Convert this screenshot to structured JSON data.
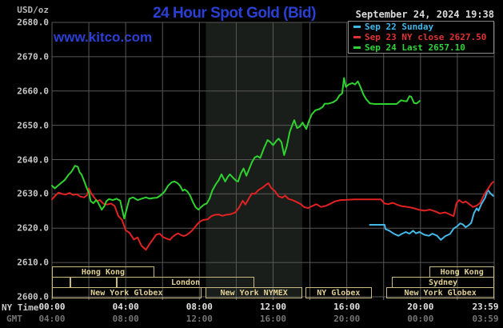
{
  "header": {
    "title": "24 Hour Spot Gold (Bid)",
    "datetime": "September 24, 2024 19:38"
  },
  "watermark": "www.kitco.com",
  "y_axis": {
    "unit_label": "USD/oz",
    "ticks": [
      "2680.0",
      "2670.0",
      "2660.0",
      "2650.0",
      "2640.0",
      "2630.0",
      "2620.0",
      "2610.0",
      "2600.0"
    ]
  },
  "x_axis": {
    "ny_row_label": "NY Time",
    "gmt_row_label": "GMT",
    "tick_hours": [
      0,
      4,
      8,
      12,
      16,
      20,
      23.983
    ],
    "ny_ticks": [
      "00:00",
      "04:00",
      "08:00",
      "12:00",
      "16:00",
      "20:00",
      "23:59"
    ],
    "gmt_ticks": [
      "04:00",
      "08:00",
      "12:00",
      "16:00",
      "20:00",
      "00:00",
      "03:59"
    ]
  },
  "legend": {
    "entries": [
      {
        "label": "Sep 22 Sunday",
        "color": "#3fb8ea"
      },
      {
        "label": "Sep 23 NY close 2627.50",
        "color": "#e03232"
      },
      {
        "label": "Sep 24 Last 2657.10",
        "color": "#2fd336"
      }
    ]
  },
  "sessions": [
    {
      "row": 0,
      "start": 0,
      "end": 5.55,
      "label": "Hong Kong"
    },
    {
      "row": 0,
      "start": 20.5,
      "end": 24,
      "label": "Hong Kong"
    },
    {
      "row": 1,
      "start": 0,
      "end": 1.0,
      "label": ""
    },
    {
      "row": 1,
      "start": 1.0,
      "end": 3.5,
      "label": ""
    },
    {
      "row": 1,
      "start": 3.5,
      "end": 11.0,
      "label": "London"
    },
    {
      "row": 1,
      "start": 18.45,
      "end": 24,
      "label": "Sydney"
    },
    {
      "row": 2,
      "start": 0,
      "end": 8.1,
      "label": "New York Globex"
    },
    {
      "row": 2,
      "start": 8.35,
      "end": 13.58,
      "label": "New York NYMEX"
    },
    {
      "row": 2,
      "start": 13.75,
      "end": 17.35,
      "label": "NY Globex"
    },
    {
      "row": 2,
      "start": 18.15,
      "end": 24,
      "label": "New York Globex"
    }
  ],
  "chart_data": {
    "type": "line",
    "title": "24 Hour Spot Gold (Bid)",
    "ylabel": "USD/oz",
    "xlabel": "NY Time (hours)",
    "xlim": [
      0,
      24
    ],
    "ylim": [
      2600,
      2680
    ],
    "grid": {
      "x_step_hours": 2,
      "y_step_usd": 10,
      "color": "#575757"
    },
    "background": "#000000",
    "highlight_band": {
      "start_hour": 8.35,
      "end_hour": 13.58,
      "color": "#1a1e1a"
    },
    "legend_position": "top-right",
    "series": [
      {
        "name": "Sep 22 Sunday",
        "color": "#45b8e8",
        "points": [
          [
            17.25,
            2621.0
          ],
          [
            18.05,
            2621.0
          ],
          [
            18.1,
            2619.7
          ],
          [
            18.3,
            2619.3
          ],
          [
            18.55,
            2618.4
          ],
          [
            18.8,
            2617.8
          ],
          [
            19.0,
            2618.4
          ],
          [
            19.2,
            2618.9
          ],
          [
            19.4,
            2618.4
          ],
          [
            19.6,
            2619.3
          ],
          [
            19.75,
            2618.5
          ],
          [
            19.95,
            2618.9
          ],
          [
            20.2,
            2618.1
          ],
          [
            20.45,
            2617.8
          ],
          [
            20.65,
            2618.4
          ],
          [
            20.9,
            2617.8
          ],
          [
            21.1,
            2616.6
          ],
          [
            21.35,
            2617.7
          ],
          [
            21.6,
            2618.3
          ],
          [
            21.8,
            2619.9
          ],
          [
            22.0,
            2620.6
          ],
          [
            22.15,
            2621.4
          ],
          [
            22.3,
            2621.1
          ],
          [
            22.45,
            2620.3
          ],
          [
            22.6,
            2620.8
          ],
          [
            22.75,
            2621.5
          ],
          [
            22.9,
            2624.4
          ],
          [
            23.05,
            2625.8
          ],
          [
            23.15,
            2625.1
          ],
          [
            23.3,
            2627.0
          ],
          [
            23.5,
            2628.8
          ],
          [
            23.65,
            2631.2
          ],
          [
            23.8,
            2630.1
          ],
          [
            23.95,
            2629.4
          ]
        ]
      },
      {
        "name": "Sep 23",
        "color": "#e02222",
        "points": [
          [
            0.0,
            2628.4
          ],
          [
            0.2,
            2629.6
          ],
          [
            0.35,
            2630.4
          ],
          [
            0.55,
            2630.0
          ],
          [
            0.75,
            2629.8
          ],
          [
            0.95,
            2630.3
          ],
          [
            1.15,
            2629.7
          ],
          [
            1.35,
            2629.9
          ],
          [
            1.55,
            2629.2
          ],
          [
            1.75,
            2629.0
          ],
          [
            1.9,
            2629.6
          ],
          [
            2.0,
            2631.6
          ],
          [
            2.15,
            2630.0
          ],
          [
            2.3,
            2628.9
          ],
          [
            2.45,
            2627.9
          ],
          [
            2.6,
            2628.2
          ],
          [
            2.8,
            2627.1
          ],
          [
            3.0,
            2626.9
          ],
          [
            3.2,
            2627.2
          ],
          [
            3.4,
            2626.5
          ],
          [
            3.6,
            2623.6
          ],
          [
            3.8,
            2622.4
          ],
          [
            4.0,
            2619.4
          ],
          [
            4.2,
            2618.7
          ],
          [
            4.45,
            2616.7
          ],
          [
            4.65,
            2617.3
          ],
          [
            4.85,
            2614.9
          ],
          [
            5.1,
            2613.7
          ],
          [
            5.3,
            2615.4
          ],
          [
            5.5,
            2616.9
          ],
          [
            5.65,
            2618.1
          ],
          [
            5.85,
            2618.4
          ],
          [
            6.0,
            2617.5
          ],
          [
            6.2,
            2617.0
          ],
          [
            6.4,
            2616.6
          ],
          [
            6.55,
            2617.5
          ],
          [
            6.7,
            2618.1
          ],
          [
            6.85,
            2618.5
          ],
          [
            7.0,
            2618.0
          ],
          [
            7.15,
            2617.7
          ],
          [
            7.3,
            2618.0
          ],
          [
            7.45,
            2618.6
          ],
          [
            7.6,
            2619.3
          ],
          [
            7.8,
            2620.6
          ],
          [
            8.0,
            2621.8
          ],
          [
            8.2,
            2622.4
          ],
          [
            8.45,
            2622.6
          ],
          [
            8.65,
            2623.5
          ],
          [
            8.85,
            2623.9
          ],
          [
            9.05,
            2624.0
          ],
          [
            9.25,
            2623.6
          ],
          [
            9.45,
            2623.9
          ],
          [
            9.7,
            2624.1
          ],
          [
            9.95,
            2624.6
          ],
          [
            10.15,
            2626.0
          ],
          [
            10.35,
            2628.0
          ],
          [
            10.5,
            2626.9
          ],
          [
            10.7,
            2628.8
          ],
          [
            10.85,
            2630.1
          ],
          [
            11.0,
            2630.0
          ],
          [
            11.2,
            2631.1
          ],
          [
            11.45,
            2631.9
          ],
          [
            11.65,
            2632.8
          ],
          [
            11.75,
            2633.1
          ],
          [
            11.9,
            2631.7
          ],
          [
            12.1,
            2630.8
          ],
          [
            12.3,
            2629.3
          ],
          [
            12.5,
            2628.9
          ],
          [
            12.65,
            2629.5
          ],
          [
            12.85,
            2628.5
          ],
          [
            13.05,
            2628.2
          ],
          [
            13.25,
            2627.7
          ],
          [
            13.5,
            2627.0
          ],
          [
            13.7,
            2626.1
          ],
          [
            13.9,
            2625.9
          ],
          [
            14.1,
            2626.4
          ],
          [
            14.35,
            2627.0
          ],
          [
            14.6,
            2626.2
          ],
          [
            14.85,
            2626.5
          ],
          [
            15.1,
            2627.1
          ],
          [
            15.35,
            2627.8
          ],
          [
            15.65,
            2628.2
          ],
          [
            16.0,
            2628.3
          ],
          [
            16.4,
            2628.4
          ],
          [
            17.0,
            2628.4
          ],
          [
            17.85,
            2628.4
          ],
          [
            18.05,
            2627.2
          ],
          [
            18.25,
            2627.0
          ],
          [
            18.5,
            2627.4
          ],
          [
            18.75,
            2626.8
          ],
          [
            19.0,
            2626.4
          ],
          [
            19.3,
            2626.2
          ],
          [
            19.6,
            2625.9
          ],
          [
            19.9,
            2625.4
          ],
          [
            20.2,
            2625.1
          ],
          [
            20.5,
            2625.4
          ],
          [
            20.8,
            2624.9
          ],
          [
            21.05,
            2624.3
          ],
          [
            21.35,
            2624.6
          ],
          [
            21.6,
            2624.0
          ],
          [
            21.8,
            2623.5
          ],
          [
            21.95,
            2627.3
          ],
          [
            22.1,
            2628.2
          ],
          [
            22.3,
            2627.4
          ],
          [
            22.45,
            2627.8
          ],
          [
            22.65,
            2627.0
          ],
          [
            22.85,
            2626.2
          ],
          [
            23.05,
            2626.6
          ],
          [
            23.25,
            2627.4
          ],
          [
            23.45,
            2629.8
          ],
          [
            23.65,
            2631.4
          ],
          [
            23.85,
            2633.0
          ],
          [
            23.95,
            2633.5
          ]
        ]
      },
      {
        "name": "Sep 24",
        "color": "#2fd32f",
        "points": [
          [
            0.0,
            2632.4
          ],
          [
            0.15,
            2631.6
          ],
          [
            0.3,
            2632.3
          ],
          [
            0.5,
            2633.2
          ],
          [
            0.7,
            2634.1
          ],
          [
            0.9,
            2635.6
          ],
          [
            1.05,
            2636.4
          ],
          [
            1.25,
            2638.2
          ],
          [
            1.4,
            2637.9
          ],
          [
            1.5,
            2636.3
          ],
          [
            1.6,
            2635.7
          ],
          [
            1.75,
            2633.7
          ],
          [
            1.9,
            2631.5
          ],
          [
            2.0,
            2630.5
          ],
          [
            2.1,
            2627.9
          ],
          [
            2.25,
            2627.3
          ],
          [
            2.4,
            2628.2
          ],
          [
            2.5,
            2627.5
          ],
          [
            2.7,
            2625.4
          ],
          [
            2.85,
            2626.5
          ],
          [
            2.95,
            2627.9
          ],
          [
            3.1,
            2628.5
          ],
          [
            3.3,
            2628.2
          ],
          [
            3.5,
            2628.6
          ],
          [
            3.7,
            2628.0
          ],
          [
            3.85,
            2624.5
          ],
          [
            3.92,
            2622.8
          ],
          [
            4.05,
            2625.5
          ],
          [
            4.2,
            2628.6
          ],
          [
            4.4,
            2629.0
          ],
          [
            4.65,
            2628.2
          ],
          [
            4.85,
            2628.6
          ],
          [
            5.1,
            2629.0
          ],
          [
            5.3,
            2628.6
          ],
          [
            5.5,
            2628.8
          ],
          [
            5.7,
            2628.9
          ],
          [
            5.9,
            2629.6
          ],
          [
            6.1,
            2630.6
          ],
          [
            6.3,
            2632.4
          ],
          [
            6.5,
            2633.4
          ],
          [
            6.65,
            2633.6
          ],
          [
            6.8,
            2633.2
          ],
          [
            6.95,
            2632.4
          ],
          [
            7.1,
            2630.9
          ],
          [
            7.2,
            2631.3
          ],
          [
            7.35,
            2630.7
          ],
          [
            7.5,
            2629.5
          ],
          [
            7.65,
            2627.6
          ],
          [
            7.8,
            2626.1
          ],
          [
            7.95,
            2625.4
          ],
          [
            8.1,
            2626.2
          ],
          [
            8.25,
            2626.9
          ],
          [
            8.4,
            2627.2
          ],
          [
            8.55,
            2628.6
          ],
          [
            8.7,
            2631.0
          ],
          [
            8.9,
            2632.9
          ],
          [
            9.05,
            2634.0
          ],
          [
            9.2,
            2635.7
          ],
          [
            9.4,
            2633.6
          ],
          [
            9.55,
            2635.0
          ],
          [
            9.65,
            2635.7
          ],
          [
            9.8,
            2634.9
          ],
          [
            10.0,
            2633.8
          ],
          [
            10.1,
            2633.6
          ],
          [
            10.25,
            2636.0
          ],
          [
            10.4,
            2637.4
          ],
          [
            10.55,
            2635.3
          ],
          [
            10.7,
            2637.2
          ],
          [
            10.85,
            2639.2
          ],
          [
            11.0,
            2640.6
          ],
          [
            11.15,
            2641.0
          ],
          [
            11.3,
            2640.5
          ],
          [
            11.5,
            2643.3
          ],
          [
            11.7,
            2645.7
          ],
          [
            11.85,
            2645.1
          ],
          [
            12.0,
            2644.2
          ],
          [
            12.2,
            2645.6
          ],
          [
            12.3,
            2646.1
          ],
          [
            12.45,
            2645.1
          ],
          [
            12.6,
            2641.3
          ],
          [
            12.75,
            2644.0
          ],
          [
            12.9,
            2648.0
          ],
          [
            13.05,
            2650.2
          ],
          [
            13.15,
            2651.5
          ],
          [
            13.3,
            2649.2
          ],
          [
            13.45,
            2649.6
          ],
          [
            13.6,
            2650.8
          ],
          [
            13.8,
            2648.9
          ],
          [
            13.95,
            2651.3
          ],
          [
            14.1,
            2653.2
          ],
          [
            14.3,
            2654.4
          ],
          [
            14.5,
            2654.7
          ],
          [
            14.7,
            2655.4
          ],
          [
            14.8,
            2656.3
          ],
          [
            15.0,
            2656.3
          ],
          [
            15.25,
            2656.7
          ],
          [
            15.45,
            2657.4
          ],
          [
            15.6,
            2658.7
          ],
          [
            15.75,
            2659.3
          ],
          [
            15.85,
            2663.8
          ],
          [
            15.95,
            2661.2
          ],
          [
            16.1,
            2661.9
          ],
          [
            16.3,
            2662.3
          ],
          [
            16.45,
            2661.9
          ],
          [
            16.6,
            2662.8
          ],
          [
            16.75,
            2661.1
          ],
          [
            16.9,
            2659.0
          ],
          [
            17.05,
            2657.6
          ],
          [
            17.25,
            2656.4
          ],
          [
            17.5,
            2656.2
          ],
          [
            17.9,
            2656.2
          ],
          [
            18.3,
            2656.2
          ],
          [
            18.7,
            2656.2
          ],
          [
            18.95,
            2657.3
          ],
          [
            19.1,
            2657.1
          ],
          [
            19.25,
            2657.0
          ],
          [
            19.4,
            2658.5
          ],
          [
            19.5,
            2658.3
          ],
          [
            19.65,
            2656.5
          ],
          [
            19.8,
            2656.4
          ],
          [
            19.95,
            2657.1
          ]
        ]
      }
    ]
  }
}
